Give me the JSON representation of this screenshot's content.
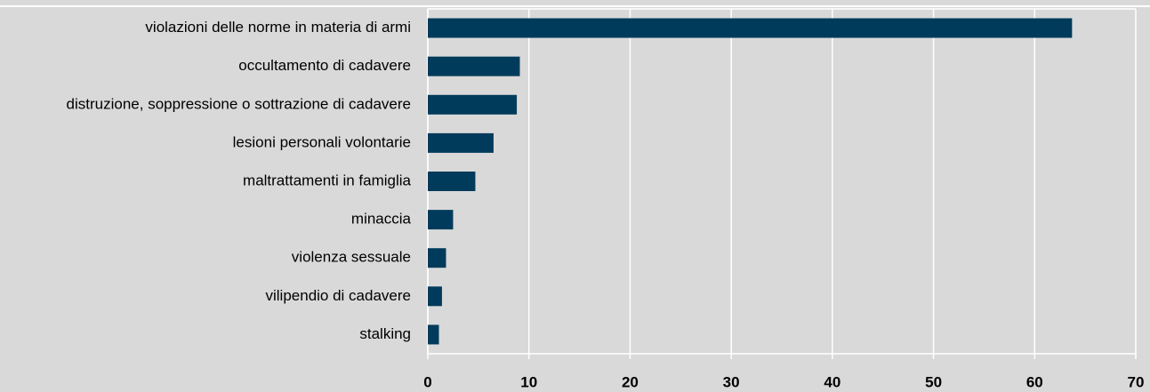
{
  "chart_data": {
    "type": "bar",
    "orientation": "horizontal",
    "categories": [
      "violazioni delle norme in materia di armi",
      "occultamento di cadavere",
      "distruzione, soppressione o sottrazione di cadavere",
      "lesioni personali volontarie",
      "maltrattamenti in famiglia",
      "minaccia",
      "violenza sessuale",
      "vilipendio di cadavere",
      "stalking"
    ],
    "values": [
      63.7,
      9.1,
      8.8,
      6.5,
      4.7,
      2.5,
      1.8,
      1.4,
      1.1
    ],
    "color": "#003b5c",
    "xlim": [
      0,
      70
    ],
    "xticks": [
      0,
      10,
      20,
      30,
      40,
      50,
      60,
      70
    ],
    "grid": true
  }
}
